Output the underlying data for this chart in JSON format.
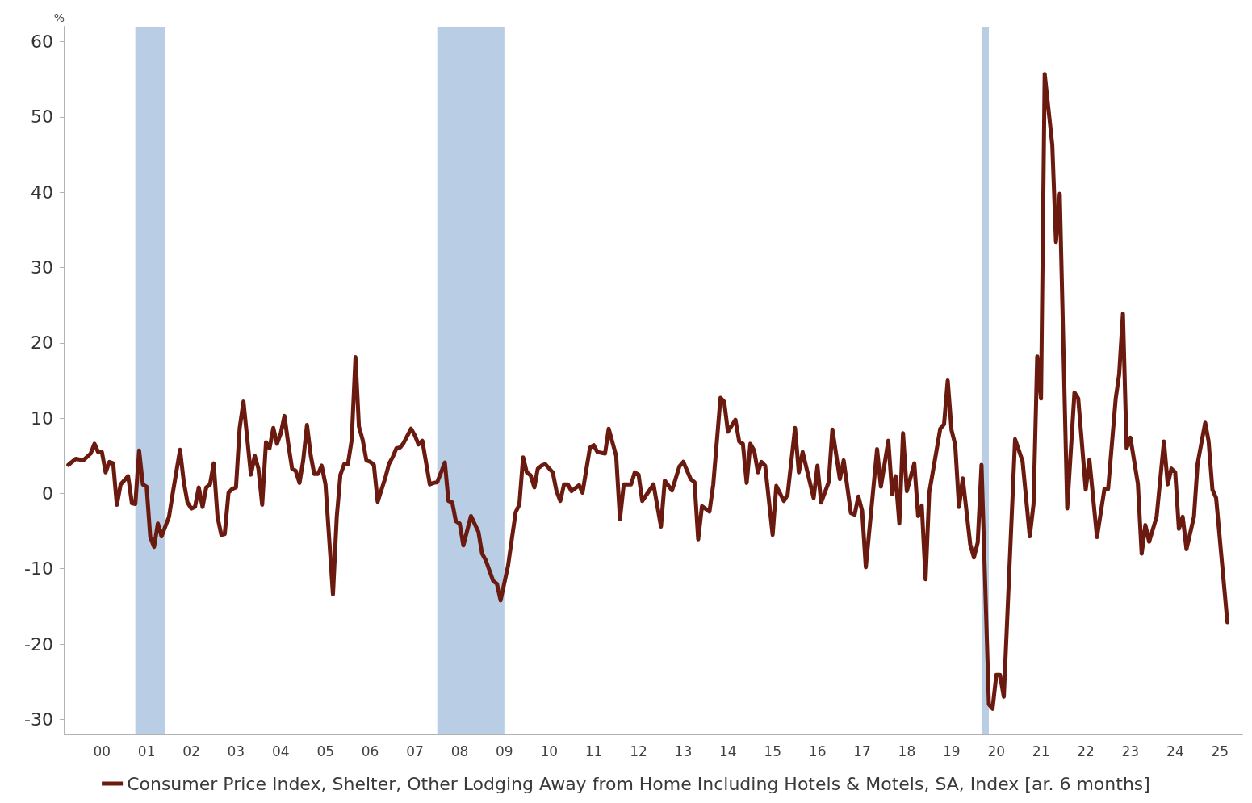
{
  "chart_data": {
    "type": "line",
    "ylabel": "%",
    "legend": "bottom",
    "grid": false,
    "marker": "none",
    "line_style": "solid",
    "xlim": [
      "1999-08",
      "2025-12"
    ],
    "xticks": [
      {
        "value": "2000-06",
        "label": "00"
      },
      {
        "value": "2001-06",
        "label": "01"
      },
      {
        "value": "2002-06",
        "label": "02"
      },
      {
        "value": "2003-06",
        "label": "03"
      },
      {
        "value": "2004-06",
        "label": "04"
      },
      {
        "value": "2005-06",
        "label": "05"
      },
      {
        "value": "2006-06",
        "label": "06"
      },
      {
        "value": "2007-06",
        "label": "07"
      },
      {
        "value": "2008-06",
        "label": "08"
      },
      {
        "value": "2009-06",
        "label": "09"
      },
      {
        "value": "2010-06",
        "label": "10"
      },
      {
        "value": "2011-06",
        "label": "11"
      },
      {
        "value": "2012-06",
        "label": "12"
      },
      {
        "value": "2013-06",
        "label": "13"
      },
      {
        "value": "2014-06",
        "label": "14"
      },
      {
        "value": "2015-06",
        "label": "15"
      },
      {
        "value": "2016-06",
        "label": "16"
      },
      {
        "value": "2017-06",
        "label": "17"
      },
      {
        "value": "2018-06",
        "label": "18"
      },
      {
        "value": "2019-06",
        "label": "19"
      },
      {
        "value": "2020-06",
        "label": "20"
      },
      {
        "value": "2021-06",
        "label": "21"
      },
      {
        "value": "2022-06",
        "label": "22"
      },
      {
        "value": "2023-06",
        "label": "23"
      },
      {
        "value": "2024-06",
        "label": "24"
      },
      {
        "value": "2025-06",
        "label": "25"
      }
    ],
    "ylim": [
      -32,
      62
    ],
    "yticks": [
      -30,
      -20,
      -10,
      0,
      10,
      20,
      30,
      40,
      50,
      60
    ],
    "bands": [
      {
        "axis": "x",
        "from": "2001-03",
        "to": "2001-11",
        "color": "#b9cde5"
      },
      {
        "axis": "x",
        "from": "2007-12",
        "to": "2009-06",
        "color": "#b9cde5"
      },
      {
        "axis": "x",
        "from": "2020-02",
        "to": "2020-04",
        "color": "#b9cde5"
      }
    ],
    "series": [
      {
        "name": "Consumer Price Index, Shelter, Other Lodging Away from Home Including Hotels & Motels, SA, Index [ar. 6 months]",
        "color": "#6b1a0f",
        "x": [
          "1999-09",
          "1999-11",
          "2000-01",
          "2000-03",
          "2000-04",
          "2000-05",
          "2000-06",
          "2000-07",
          "2000-08",
          "2000-09",
          "2000-10",
          "2000-11",
          "2001-01",
          "2001-02",
          "2001-03",
          "2001-04",
          "2001-05",
          "2001-06",
          "2001-07",
          "2001-08",
          "2001-09",
          "2001-10",
          "2001-12",
          "2002-01",
          "2002-03",
          "2002-04",
          "2002-05",
          "2002-06",
          "2002-07",
          "2002-08",
          "2002-09",
          "2002-10",
          "2002-11",
          "2002-12",
          "2003-01",
          "2003-02",
          "2003-03",
          "2003-04",
          "2003-05",
          "2003-06",
          "2003-07",
          "2003-08",
          "2003-10",
          "2003-11",
          "2003-12",
          "2004-01",
          "2004-02",
          "2004-03",
          "2004-04",
          "2004-05",
          "2004-06",
          "2004-07",
          "2004-08",
          "2004-09",
          "2004-10",
          "2004-11",
          "2004-12",
          "2005-01",
          "2005-02",
          "2005-03",
          "2005-04",
          "2005-05",
          "2005-06",
          "2005-08",
          "2005-09",
          "2005-10",
          "2005-11",
          "2005-12",
          "2006-01",
          "2006-02",
          "2006-03",
          "2006-04",
          "2006-05",
          "2006-06",
          "2006-07",
          "2006-08",
          "2006-10",
          "2006-11",
          "2006-12",
          "2007-01",
          "2007-02",
          "2007-03",
          "2007-05",
          "2007-06",
          "2007-07",
          "2007-08",
          "2007-10",
          "2007-11",
          "2007-12",
          "2008-02",
          "2008-03",
          "2008-04",
          "2008-05",
          "2008-06",
          "2008-07",
          "2008-09",
          "2008-11",
          "2008-12",
          "2009-01",
          "2009-03",
          "2009-04",
          "2009-05",
          "2009-07",
          "2009-09",
          "2009-10",
          "2009-11",
          "2009-12",
          "2010-01",
          "2010-02",
          "2010-03",
          "2010-04",
          "2010-05",
          "2010-07",
          "2010-08",
          "2010-09",
          "2010-10",
          "2010-11",
          "2010-12",
          "2011-02",
          "2011-03",
          "2011-05",
          "2011-06",
          "2011-07",
          "2011-09",
          "2011-10",
          "2011-12",
          "2012-01",
          "2012-02",
          "2012-04",
          "2012-05",
          "2012-06",
          "2012-07",
          "2012-10",
          "2012-12",
          "2013-01",
          "2013-03",
          "2013-05",
          "2013-06",
          "2013-08",
          "2013-09",
          "2013-10",
          "2013-11",
          "2014-01",
          "2014-02",
          "2014-04",
          "2014-05",
          "2014-06",
          "2014-08",
          "2014-09",
          "2014-10",
          "2014-11",
          "2014-12",
          "2015-01",
          "2015-02",
          "2015-03",
          "2015-04",
          "2015-06",
          "2015-07",
          "2015-09",
          "2015-10",
          "2015-12",
          "2016-01",
          "2016-02",
          "2016-05",
          "2016-06",
          "2016-07",
          "2016-09",
          "2016-10",
          "2016-12",
          "2017-01",
          "2017-03",
          "2017-04",
          "2017-05",
          "2017-06",
          "2017-07",
          "2017-10",
          "2017-11",
          "2018-01",
          "2018-02",
          "2018-03",
          "2018-04",
          "2018-05",
          "2018-06",
          "2018-08",
          "2018-09",
          "2018-10",
          "2018-11",
          "2018-12",
          "2019-03",
          "2019-04",
          "2019-05",
          "2019-06",
          "2019-07",
          "2019-08",
          "2019-09",
          "2019-11",
          "2019-12",
          "2020-01",
          "2020-02",
          "2020-04",
          "2020-05",
          "2020-06",
          "2020-07",
          "2020-08",
          "2020-11",
          "2021-01",
          "2021-03",
          "2021-04",
          "2021-05",
          "2021-06",
          "2021-07",
          "2021-09",
          "2021-10",
          "2021-11",
          "2022-01",
          "2022-03",
          "2022-04",
          "2022-06",
          "2022-07",
          "2022-09",
          "2022-11",
          "2022-12",
          "2023-02",
          "2023-03",
          "2023-04",
          "2023-05",
          "2023-06",
          "2023-08",
          "2023-09",
          "2023-10",
          "2023-11",
          "2024-01",
          "2024-03",
          "2024-04",
          "2024-05",
          "2024-06",
          "2024-07",
          "2024-08",
          "2024-09",
          "2024-11",
          "2024-12",
          "2025-02",
          "2025-03",
          "2025-04",
          "2025-05",
          "2025-08"
        ],
        "values": [
          3.8,
          4.6,
          4.4,
          5.3,
          6.6,
          5.5,
          5.5,
          2.8,
          4.2,
          4.0,
          -1.5,
          1.2,
          2.3,
          -1.3,
          -1.4,
          5.7,
          1.2,
          0.9,
          -5.8,
          -7.1,
          -4.0,
          -5.7,
          -3.1,
          0.1,
          5.8,
          1.5,
          -1.2,
          -2.0,
          -1.8,
          0.8,
          -1.8,
          0.8,
          1.2,
          4.0,
          -3.1,
          -5.5,
          -5.4,
          0.1,
          0.6,
          0.8,
          8.7,
          12.2,
          2.5,
          5.0,
          3.3,
          -1.5,
          6.8,
          6.0,
          8.7,
          6.6,
          8.0,
          10.3,
          6.6,
          3.3,
          3.0,
          1.4,
          4.4,
          9.1,
          5.0,
          2.6,
          2.6,
          3.7,
          1.2,
          -13.4,
          -3.1,
          2.5,
          3.9,
          3.9,
          7.1,
          18.1,
          8.9,
          7.1,
          4.4,
          4.2,
          3.8,
          -1.1,
          2.0,
          3.9,
          4.8,
          6.0,
          6.1,
          6.7,
          8.6,
          7.7,
          6.5,
          7.0,
          1.2,
          1.4,
          1.5,
          4.1,
          -1.0,
          -1.2,
          -3.7,
          -4.0,
          -6.9,
          -3.0,
          -5.1,
          -8.0,
          -8.9,
          -11.6,
          -12.0,
          -14.2,
          -9.6,
          -2.5,
          -1.5,
          4.8,
          2.8,
          2.4,
          0.8,
          3.3,
          3.7,
          3.9,
          2.8,
          0.3,
          -1.0,
          1.2,
          1.2,
          0.3,
          1.1,
          0.1,
          6.1,
          6.4,
          5.5,
          5.3,
          8.6,
          5.0,
          -3.4,
          1.2,
          1.2,
          2.8,
          2.5,
          -1.0,
          1.2,
          -4.4,
          1.7,
          0.4,
          3.6,
          4.2,
          1.9,
          1.5,
          -6.1,
          -1.7,
          -2.4,
          1.2,
          12.7,
          12.2,
          8.2,
          9.8,
          6.9,
          6.6,
          1.4,
          6.6,
          5.7,
          2.8,
          4.2,
          3.7,
          -5.5,
          1.0,
          -1.0,
          -0.2,
          8.7,
          2.8,
          5.5,
          -0.6,
          3.7,
          -1.2,
          1.5,
          8.5,
          1.9,
          4.4,
          -2.6,
          -2.8,
          -0.4,
          -2.3,
          -9.8,
          5.9,
          0.9,
          7.0,
          -0.1,
          2.3,
          -4.0,
          8.0,
          0.3,
          4.0,
          -3.0,
          -1.6,
          -11.4,
          0.1,
          8.6,
          9.2,
          15.0,
          8.4,
          6.5,
          -1.8,
          2.0,
          -6.8,
          -8.5,
          -6.5,
          3.8,
          -28.0,
          -28.6,
          -24.1,
          -24.1,
          -27.0,
          7.2,
          4.3,
          -5.7,
          -1.4,
          18.2,
          12.6,
          55.7,
          46.3,
          33.4,
          39.8,
          -2.0,
          13.4,
          12.6,
          0.5,
          4.5,
          -5.8,
          0.6,
          0.6,
          12.6,
          15.8,
          23.9,
          6.0,
          7.4,
          1.3,
          -8.0,
          -4.2,
          -6.4,
          -3.1,
          6.9,
          1.2,
          3.3,
          2.8,
          -4.7,
          -3.1,
          -7.4,
          -3.1,
          4.0,
          9.4,
          6.9,
          0.5,
          -0.6,
          -17.1
        ]
      }
    ]
  }
}
